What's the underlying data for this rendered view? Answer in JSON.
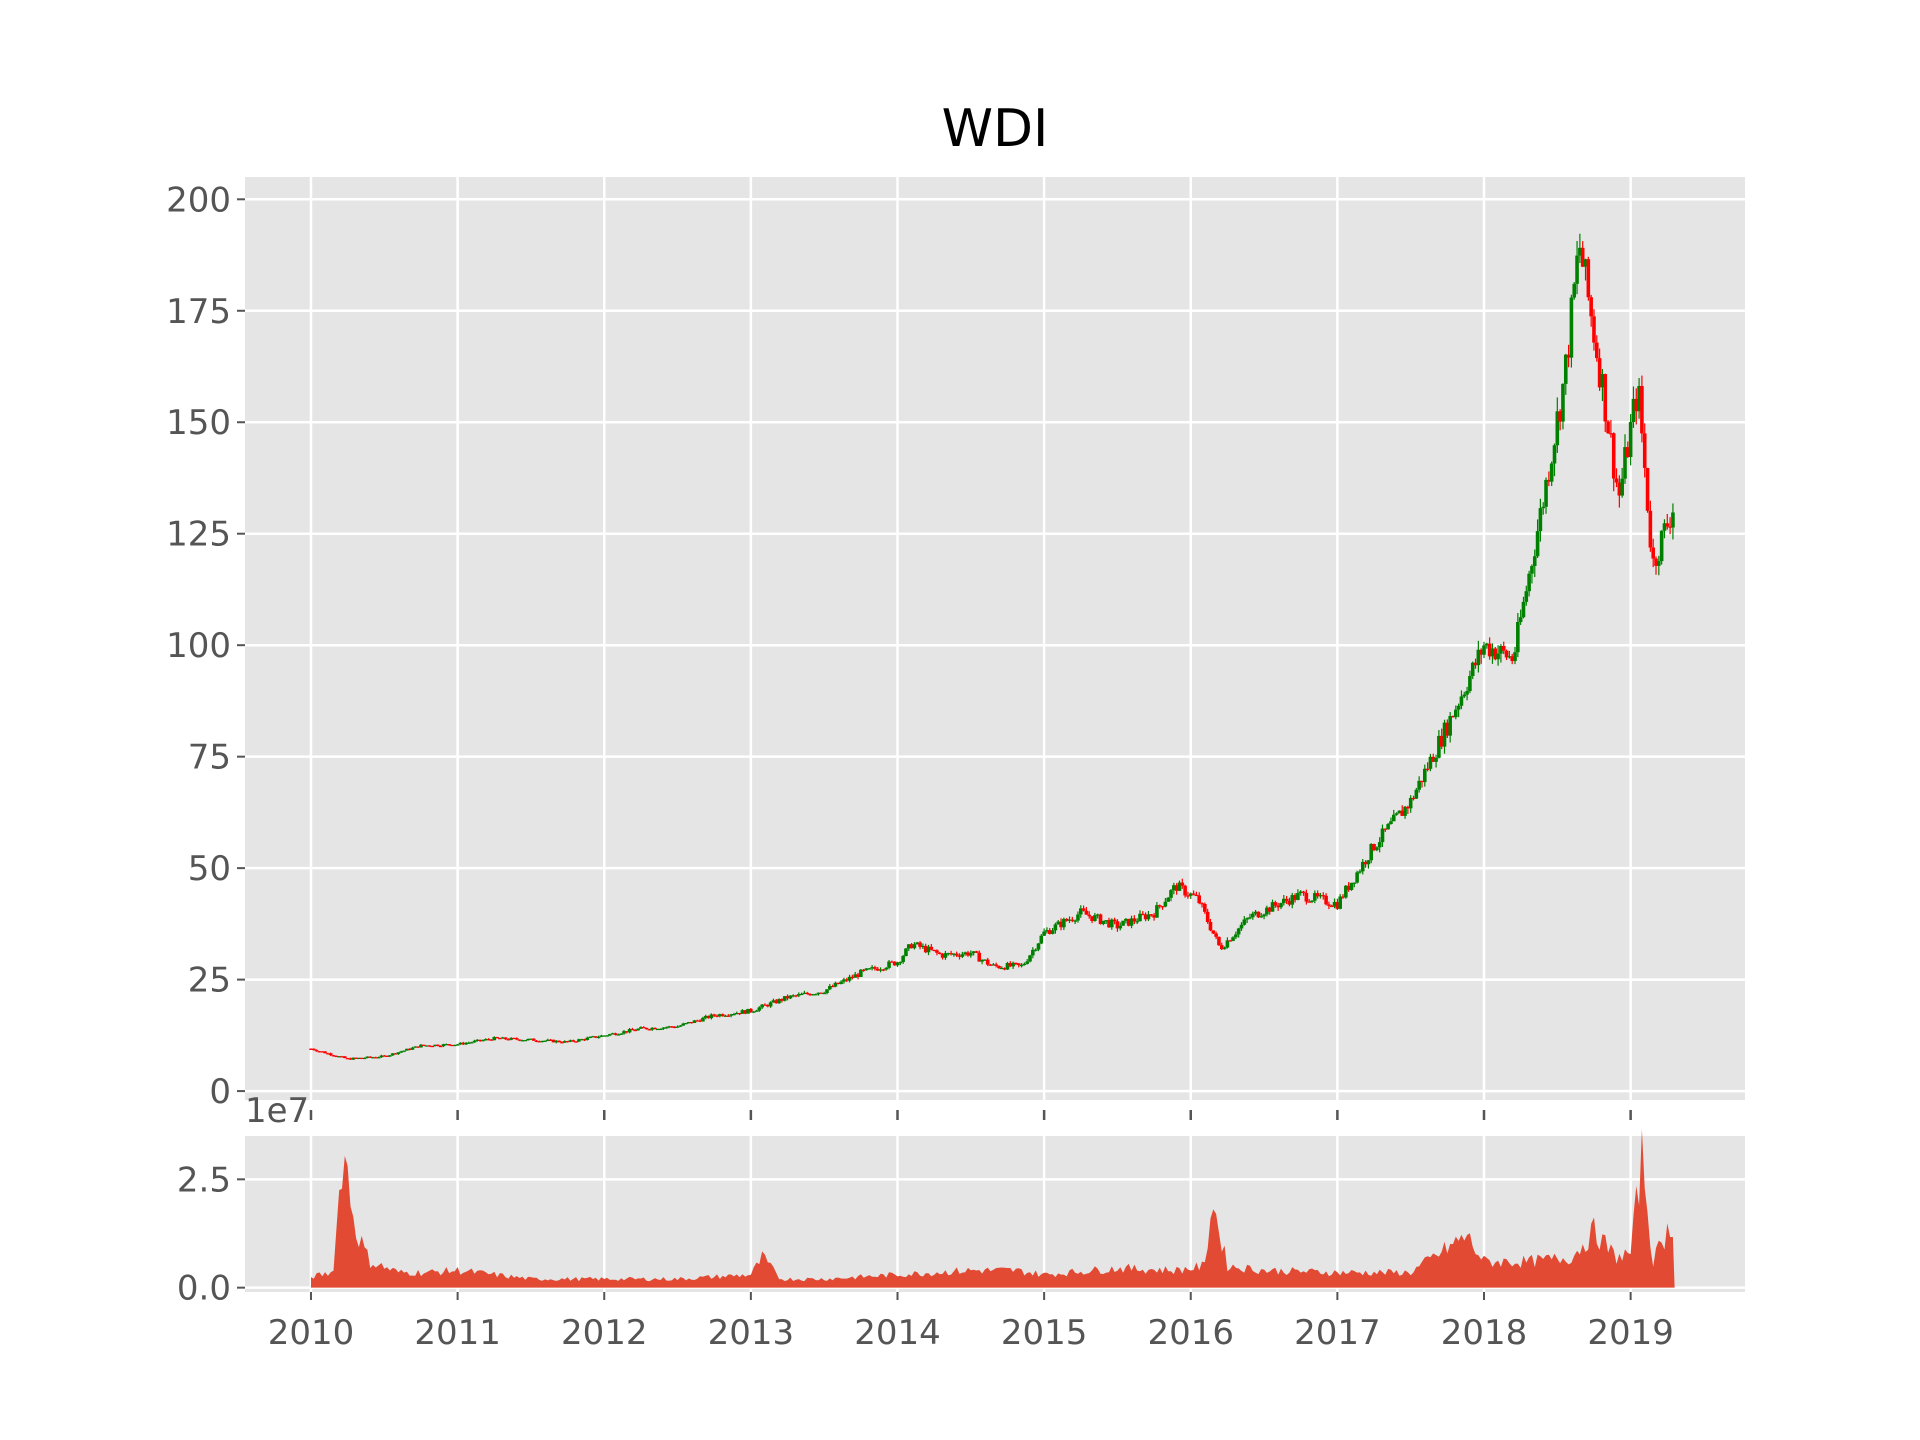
{
  "chart_data": [
    {
      "type": "candlestick",
      "title": "WDI",
      "xlabel": "",
      "ylabel": "",
      "ylim": [
        -2,
        205
      ],
      "xlim": [
        2009.55,
        2019.78
      ],
      "y_ticks": [
        "0",
        "25",
        "50",
        "75",
        "100",
        "125",
        "150",
        "175",
        "200"
      ],
      "x_ticks": [
        "2010",
        "2011",
        "2012",
        "2013",
        "2014",
        "2015",
        "2016",
        "2017",
        "2018",
        "2019"
      ],
      "grid": true,
      "up_color": "#008000",
      "down_color": "#ff0000",
      "approx_close": [
        [
          2010.0,
          9.5
        ],
        [
          2010.25,
          7.2
        ],
        [
          2010.5,
          7.8
        ],
        [
          2010.75,
          10.2
        ],
        [
          2011.0,
          10.5
        ],
        [
          2011.25,
          11.8
        ],
        [
          2011.5,
          11.5
        ],
        [
          2011.75,
          11.0
        ],
        [
          2012.0,
          12.5
        ],
        [
          2012.25,
          14.0
        ],
        [
          2012.5,
          14.5
        ],
        [
          2012.75,
          17.0
        ],
        [
          2013.0,
          18.0
        ],
        [
          2013.25,
          21.0
        ],
        [
          2013.5,
          22.5
        ],
        [
          2013.75,
          26.5
        ],
        [
          2014.0,
          29.0
        ],
        [
          2014.1,
          33.0
        ],
        [
          2014.3,
          30.5
        ],
        [
          2014.5,
          31.0
        ],
        [
          2014.65,
          28.0
        ],
        [
          2014.85,
          28.0
        ],
        [
          2015.0,
          35.5
        ],
        [
          2015.25,
          40.0
        ],
        [
          2015.5,
          37.0
        ],
        [
          2015.75,
          40.0
        ],
        [
          2015.9,
          46.0
        ],
        [
          2016.05,
          43.0
        ],
        [
          2016.2,
          32.0
        ],
        [
          2016.4,
          39.0
        ],
        [
          2016.6,
          42.0
        ],
        [
          2016.75,
          44.0
        ],
        [
          2017.0,
          42.0
        ],
        [
          2017.25,
          55.0
        ],
        [
          2017.5,
          65.0
        ],
        [
          2017.75,
          82.0
        ],
        [
          2018.0,
          100.0
        ],
        [
          2018.2,
          97.0
        ],
        [
          2018.4,
          132.0
        ],
        [
          2018.55,
          160.0
        ],
        [
          2018.65,
          190.0
        ],
        [
          2018.8,
          160.0
        ],
        [
          2018.92,
          133.0
        ],
        [
          2019.05,
          158.0
        ],
        [
          2019.15,
          118.0
        ],
        [
          2019.3,
          132.0
        ]
      ]
    },
    {
      "type": "area",
      "ylim": [
        -0.1,
        3.5
      ],
      "y_ticks": [
        "0.0",
        "2.5"
      ],
      "offset_label": "1e7",
      "color": "#e24a33",
      "approx_volume": [
        [
          2010.0,
          0.25
        ],
        [
          2010.15,
          0.35
        ],
        [
          2010.22,
          3.3
        ],
        [
          2010.3,
          1.4
        ],
        [
          2010.4,
          0.6
        ],
        [
          2010.6,
          0.35
        ],
        [
          2010.8,
          0.35
        ],
        [
          2011.0,
          0.4
        ],
        [
          2011.5,
          0.2
        ],
        [
          2012.0,
          0.2
        ],
        [
          2012.5,
          0.2
        ],
        [
          2013.0,
          0.3
        ],
        [
          2013.08,
          0.7
        ],
        [
          2013.2,
          0.2
        ],
        [
          2013.5,
          0.2
        ],
        [
          2014.0,
          0.3
        ],
        [
          2014.5,
          0.4
        ],
        [
          2014.8,
          0.4
        ],
        [
          2015.0,
          0.3
        ],
        [
          2015.5,
          0.45
        ],
        [
          2015.9,
          0.4
        ],
        [
          2016.1,
          0.5
        ],
        [
          2016.14,
          2.1
        ],
        [
          2016.25,
          0.5
        ],
        [
          2016.5,
          0.4
        ],
        [
          2017.0,
          0.35
        ],
        [
          2017.5,
          0.35
        ],
        [
          2017.88,
          1.2
        ],
        [
          2018.0,
          0.6
        ],
        [
          2018.3,
          0.6
        ],
        [
          2018.6,
          0.7
        ],
        [
          2018.75,
          1.3
        ],
        [
          2018.9,
          0.7
        ],
        [
          2019.0,
          0.8
        ],
        [
          2019.08,
          3.1
        ],
        [
          2019.15,
          0.6
        ],
        [
          2019.25,
          1.3
        ],
        [
          2019.3,
          1.5
        ]
      ]
    }
  ]
}
